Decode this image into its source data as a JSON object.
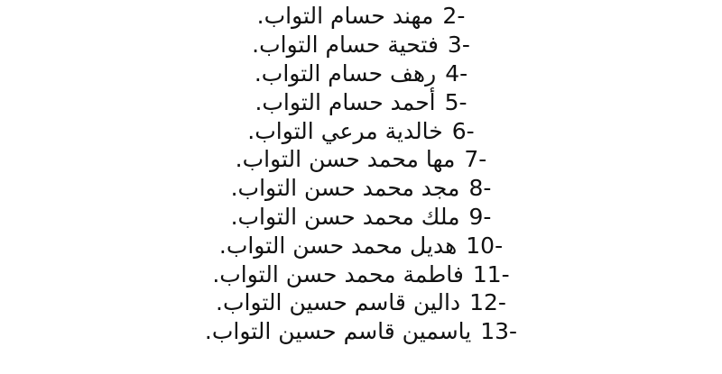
{
  "items": [
    {
      "number": "2-",
      "name": "مهند حسام التواب."
    },
    {
      "number": "3-",
      "name": "فتحية حسام التواب."
    },
    {
      "number": "4-",
      "name": "رهف حسام التواب."
    },
    {
      "number": "5-",
      "name": "أحمد حسام التواب."
    },
    {
      "number": "6-",
      "name": "خالدية مرعي التواب."
    },
    {
      "number": "7-",
      "name": "مها محمد حسن التواب."
    },
    {
      "number": "8-",
      "name": "مجد محمد حسن التواب."
    },
    {
      "number": "9-",
      "name": "ملك محمد حسن التواب."
    },
    {
      "number": "10-",
      "name": "هديل محمد حسن التواب."
    },
    {
      "number": "11-",
      "name": "فاطمة محمد حسن التواب."
    },
    {
      "number": "12-",
      "name": "دالين قاسم حسين التواب."
    },
    {
      "number": "13-",
      "name": "ياسمين قاسم حسين التواب."
    }
  ]
}
